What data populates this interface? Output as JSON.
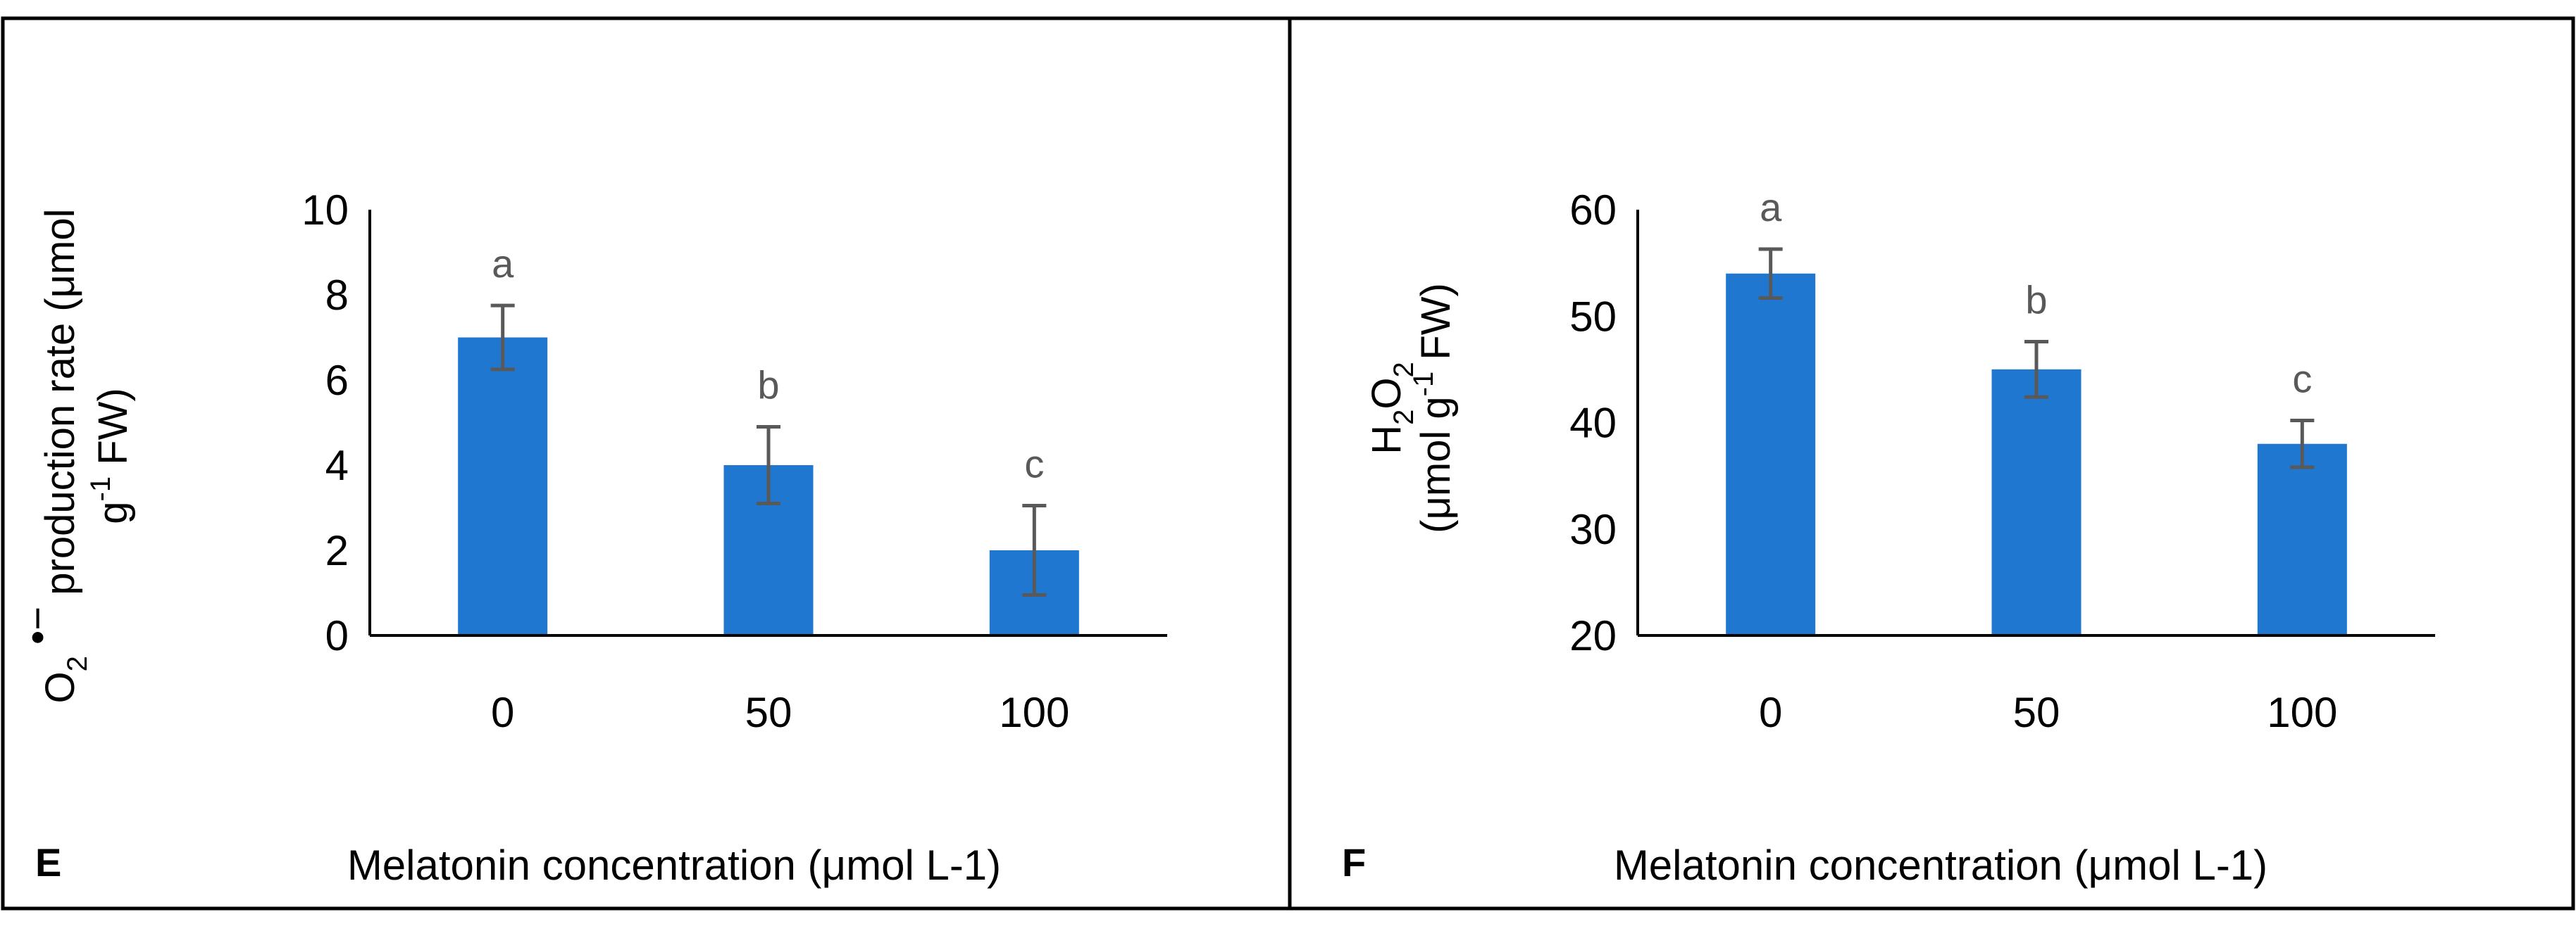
{
  "colors": {
    "bar": "#1f77cf",
    "error": "#595959",
    "axis": "#000000",
    "border": "#000000"
  },
  "chart_data": [
    {
      "type": "bar",
      "panel_label": "E",
      "ylabel": {
        "line1": [
          "O",
          "2",
          " •−",
          " production rate (μmol"
        ],
        "line2": [
          "g",
          "-1",
          " FW)"
        ]
      },
      "xlabel": "Melatonin concentration (μmol L-1)",
      "categories": [
        "0",
        "50",
        "100"
      ],
      "values": [
        7.0,
        4.0,
        2.0
      ],
      "errors": [
        0.75,
        0.9,
        1.05
      ],
      "significance": [
        "a",
        "b",
        "c"
      ],
      "ylim": [
        0,
        10
      ],
      "yticks": [
        "0",
        "2",
        "4",
        "6",
        "8",
        "10"
      ],
      "grid": false
    },
    {
      "type": "bar",
      "panel_label": "F",
      "ylabel": {
        "line1": [
          "H",
          "2",
          "O",
          "2"
        ],
        "line2": [
          "(μmol g",
          "-1",
          " FW)"
        ]
      },
      "xlabel": "Melatonin concentration (μmol L-1)",
      "categories": [
        "0",
        "50",
        "100"
      ],
      "values": [
        54,
        45,
        38
      ],
      "errors": [
        2.3,
        2.6,
        2.2
      ],
      "significance": [
        "a",
        "b",
        "c"
      ],
      "ylim": [
        20,
        60
      ],
      "yticks": [
        "20",
        "30",
        "40",
        "50",
        "60"
      ],
      "grid": false
    }
  ]
}
